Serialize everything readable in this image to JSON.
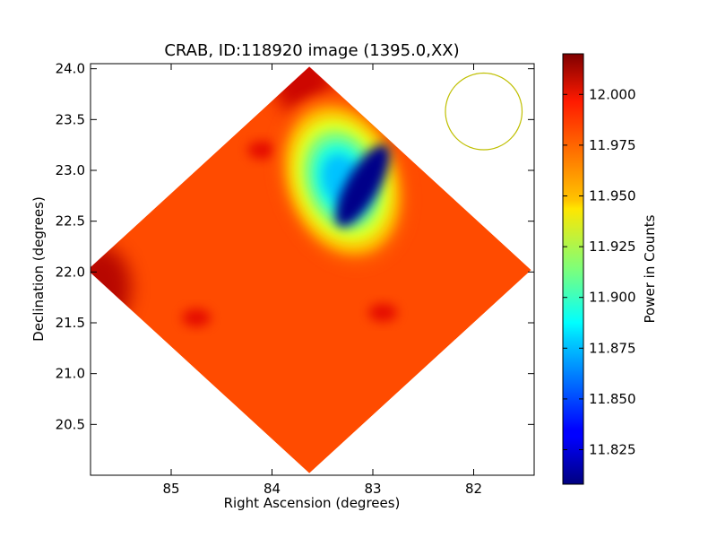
{
  "chart_data": {
    "type": "heatmap",
    "title": "CRAB, ID:118920 image (1395.0,XX)",
    "xlabel": "Right Ascension (degrees)",
    "ylabel": "Declination (degrees)",
    "xlim": [
      85.8,
      81.4
    ],
    "ylim": [
      20.0,
      24.05
    ],
    "x_inverted": true,
    "x_ticks": [
      85,
      84,
      83,
      82
    ],
    "x_tick_labels": [
      "85",
      "84",
      "83",
      "82"
    ],
    "y_ticks": [
      20.5,
      21.0,
      21.5,
      22.0,
      22.5,
      23.0,
      23.5,
      24.0
    ],
    "y_tick_labels": [
      "20.5",
      "21.0",
      "21.5",
      "22.0",
      "22.5",
      "23.0",
      "23.5",
      "24.0"
    ],
    "colorbar": {
      "label": "Power in Counts",
      "colormap": "jet",
      "range": [
        11.808,
        12.02
      ],
      "ticks": [
        11.825,
        11.85,
        11.875,
        11.9,
        11.925,
        11.95,
        11.975,
        12.0
      ],
      "tick_labels": [
        "11.825",
        "11.850",
        "11.875",
        "11.900",
        "11.925",
        "11.950",
        "11.975",
        "12.000"
      ]
    },
    "footprint": {
      "shape": "diamond",
      "center_ra": 83.63,
      "center_dec": 22.02,
      "half_width_deg": 2.2,
      "half_height_deg": 2.0,
      "background_value": 11.978
    },
    "features": [
      {
        "kind": "minimum",
        "ra": 83.1,
        "dec": 22.85,
        "value": 11.81
      },
      {
        "kind": "cold-lobe",
        "ra": 83.3,
        "dec": 22.9,
        "value": 11.9
      },
      {
        "kind": "hot-edge",
        "ra": 85.7,
        "dec": 21.85,
        "value": 12.01
      },
      {
        "kind": "hot-edge",
        "ra": 83.7,
        "dec": 23.95,
        "value": 12.005
      },
      {
        "kind": "hot-spot",
        "ra": 84.1,
        "dec": 23.2,
        "value": 12.0
      },
      {
        "kind": "hot-spot",
        "ra": 84.75,
        "dec": 21.55,
        "value": 12.0
      },
      {
        "kind": "hot-spot",
        "ra": 82.9,
        "dec": 21.6,
        "value": 12.0
      }
    ],
    "beam": {
      "shape": "circle",
      "center_ra": 81.9,
      "center_dec": 23.58,
      "radius_deg": 0.38,
      "color": "#bfbf00"
    },
    "grid": false
  }
}
